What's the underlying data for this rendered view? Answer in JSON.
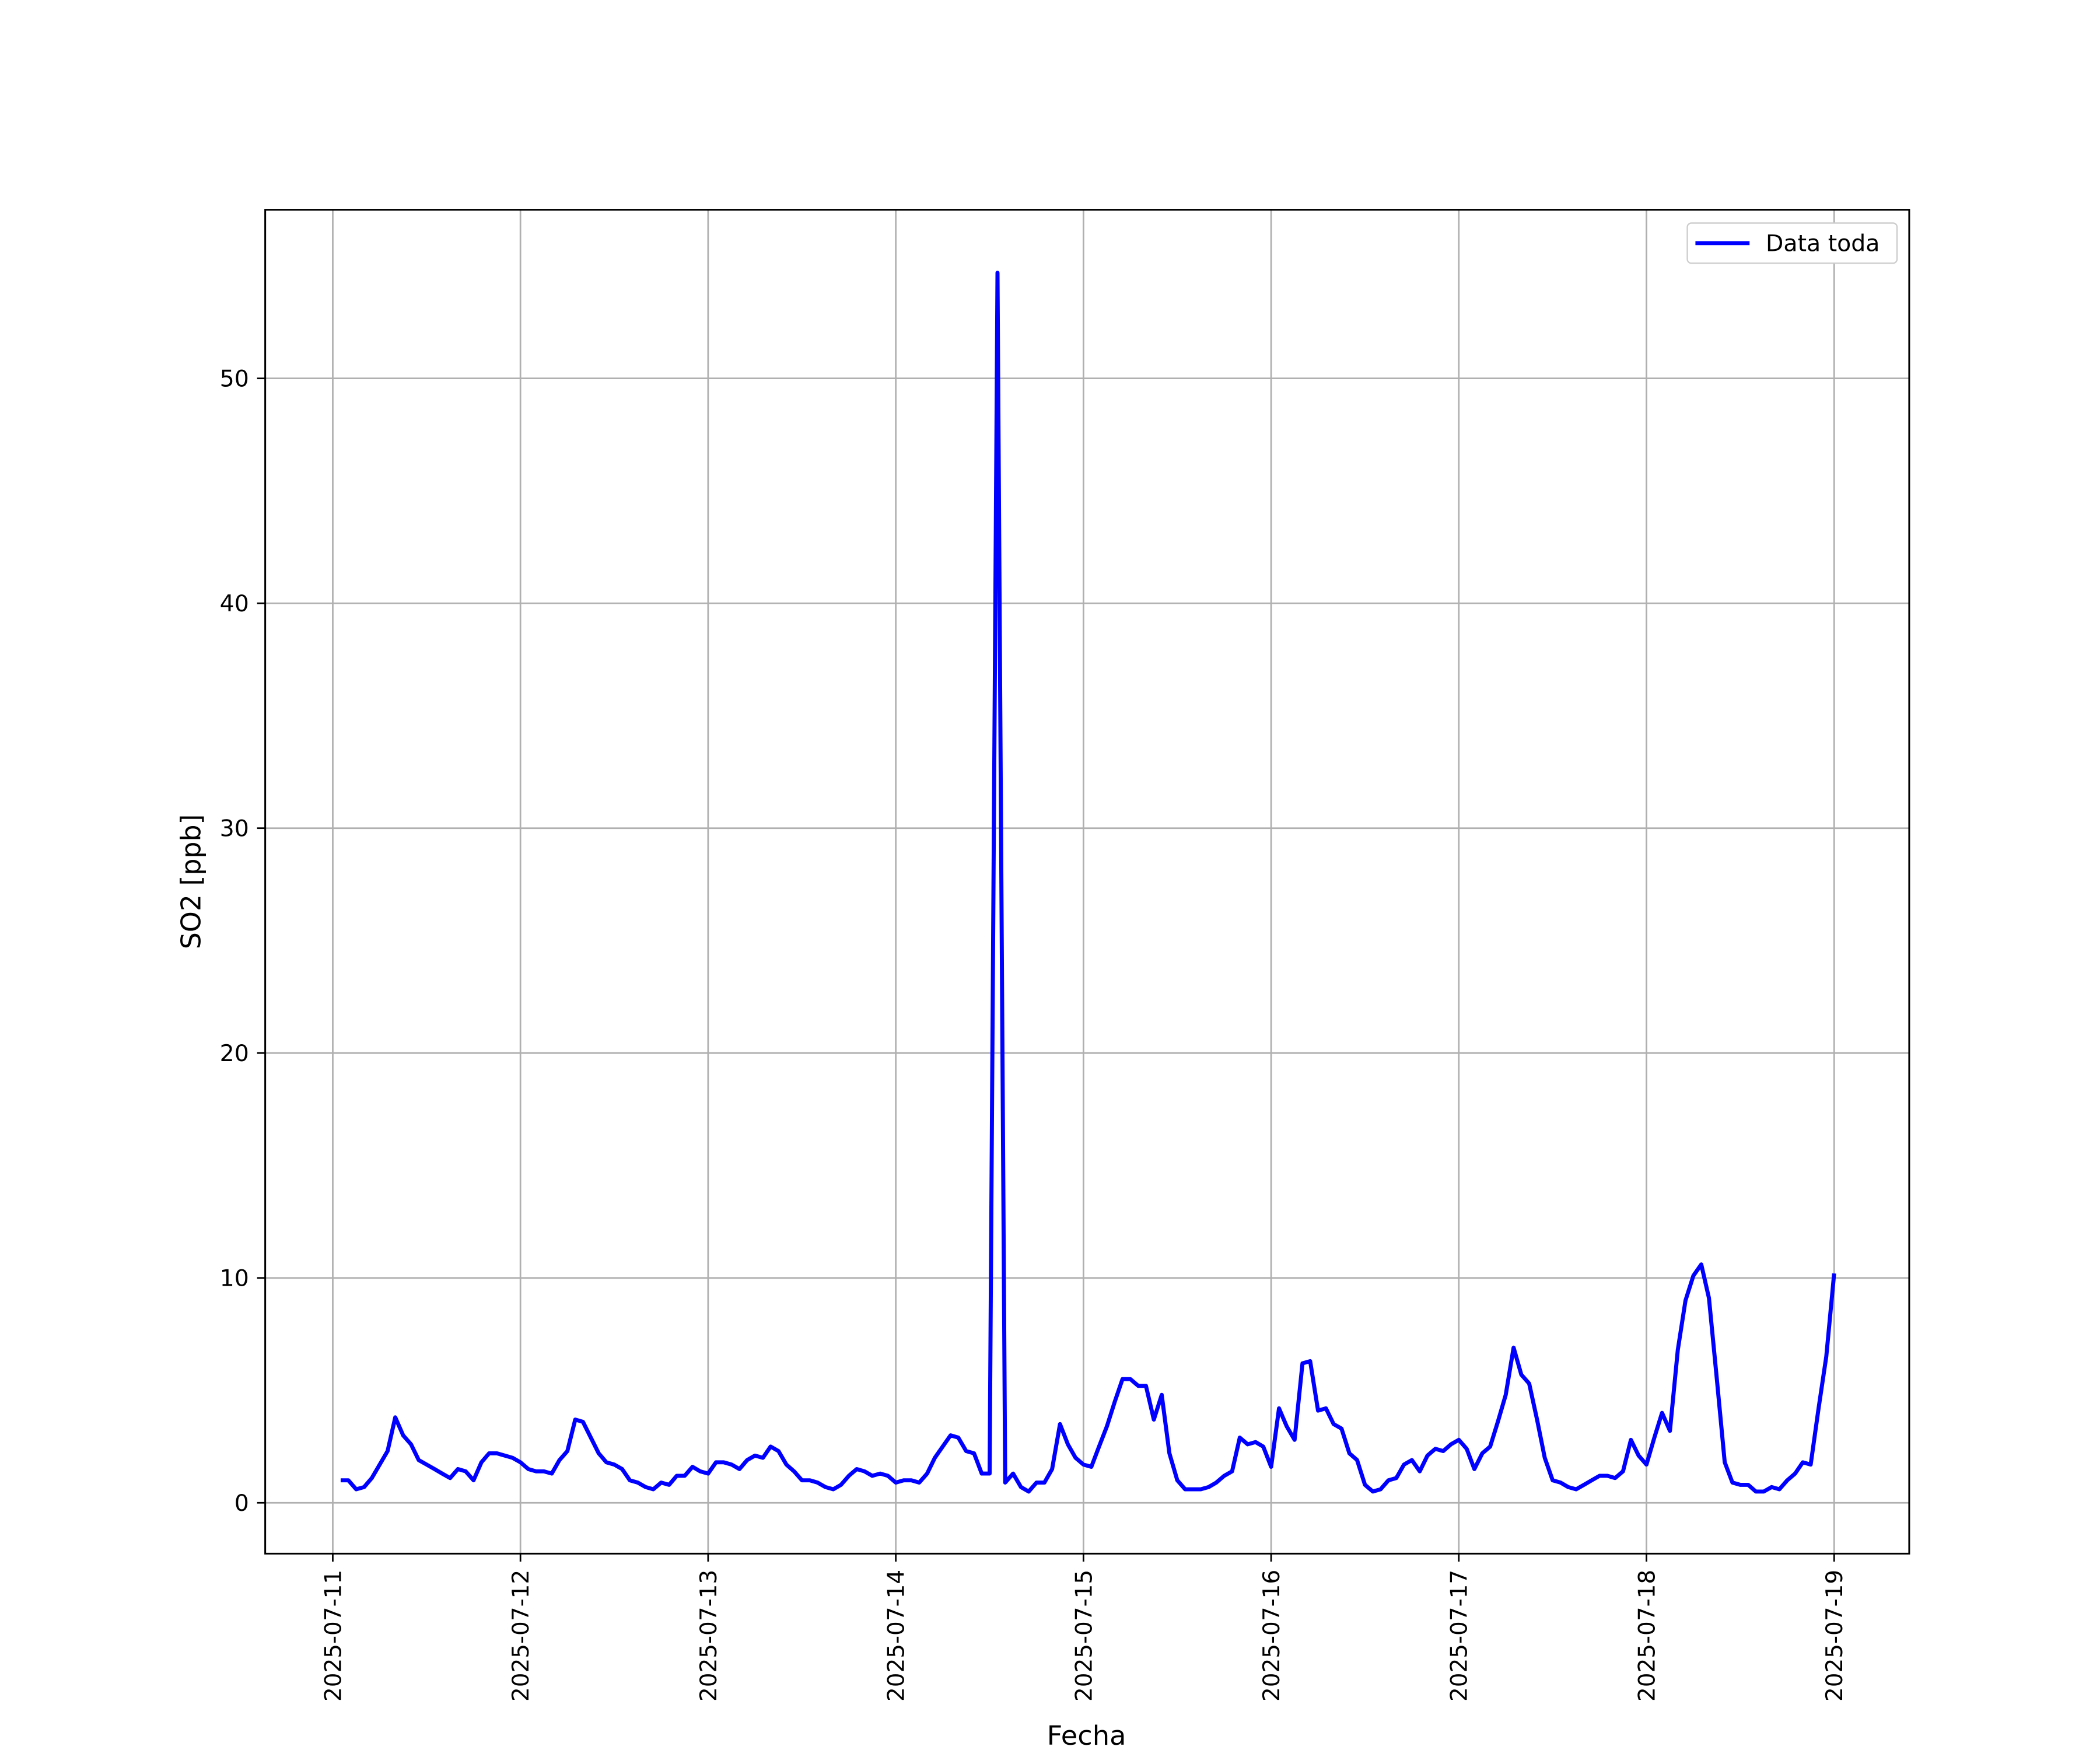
{
  "chart_data": {
    "type": "line",
    "xlabel": "Fecha",
    "ylabel": "SO2 [ppb]",
    "xlim": [
      -0.36,
      8.4
    ],
    "ylim": [
      -2.26,
      57.5
    ],
    "xticks": [
      {
        "value": 0,
        "label": "2025-07-11"
      },
      {
        "value": 1,
        "label": "2025-07-12"
      },
      {
        "value": 2,
        "label": "2025-07-13"
      },
      {
        "value": 3,
        "label": "2025-07-14"
      },
      {
        "value": 4,
        "label": "2025-07-15"
      },
      {
        "value": 5,
        "label": "2025-07-16"
      },
      {
        "value": 6,
        "label": "2025-07-17"
      },
      {
        "value": 7,
        "label": "2025-07-18"
      },
      {
        "value": 8,
        "label": "2025-07-19"
      }
    ],
    "yticks": [
      0,
      10,
      20,
      30,
      40,
      50
    ],
    "grid": true,
    "legend": "upper right",
    "x": [
      0.042,
      0.083,
      0.125,
      0.167,
      0.208,
      0.25,
      0.292,
      0.333,
      0.375,
      0.417,
      0.458,
      0.5,
      0.542,
      0.583,
      0.625,
      0.667,
      0.708,
      0.75,
      0.792,
      0.833,
      0.875,
      0.917,
      0.958,
      1,
      1.042,
      1.083,
      1.125,
      1.167,
      1.208,
      1.25,
      1.292,
      1.333,
      1.375,
      1.417,
      1.458,
      1.5,
      1.542,
      1.583,
      1.625,
      1.667,
      1.708,
      1.75,
      1.792,
      1.833,
      1.875,
      1.917,
      1.958,
      2,
      2.042,
      2.083,
      2.125,
      2.167,
      2.208,
      2.25,
      2.292,
      2.333,
      2.375,
      2.417,
      2.458,
      2.5,
      2.542,
      2.583,
      2.625,
      2.667,
      2.708,
      2.75,
      2.792,
      2.833,
      2.875,
      2.917,
      2.958,
      3,
      3.042,
      3.083,
      3.125,
      3.167,
      3.208,
      3.25,
      3.292,
      3.333,
      3.375,
      3.417,
      3.458,
      3.5,
      3.542,
      3.583,
      3.625,
      3.667,
      3.708,
      3.75,
      3.792,
      3.833,
      3.875,
      3.917,
      3.958,
      4,
      4.042,
      4.083,
      4.125,
      4.167,
      4.208,
      4.25,
      4.292,
      4.333,
      4.375,
      4.417,
      4.458,
      4.5,
      4.542,
      4.583,
      4.625,
      4.667,
      4.708,
      4.75,
      4.792,
      4.833,
      4.875,
      4.917,
      4.958,
      5,
      5.042,
      5.083,
      5.125,
      5.167,
      5.208,
      5.25,
      5.292,
      5.333,
      5.375,
      5.417,
      5.458,
      5.5,
      5.542,
      5.583,
      5.625,
      5.667,
      5.708,
      5.75,
      5.792,
      5.833,
      5.875,
      5.917,
      5.958,
      6,
      6.042,
      6.083,
      6.125,
      6.167,
      6.208,
      6.25,
      6.292,
      6.333,
      6.375,
      6.417,
      6.458,
      6.5,
      6.542,
      6.583,
      6.625,
      6.667,
      6.708,
      6.75,
      6.792,
      6.833,
      6.875,
      6.917,
      6.958,
      7,
      7.042,
      7.083,
      7.125,
      7.167,
      7.208,
      7.25,
      7.292,
      7.333,
      7.375,
      7.417,
      7.458,
      7.5,
      7.542,
      7.583,
      7.625,
      7.667,
      7.708,
      7.75,
      7.792,
      7.833,
      7.875,
      7.917,
      7.958,
      8
    ],
    "series": [
      {
        "name": "Data toda",
        "color": "#0000ff",
        "values": [
          1.0,
          1.0,
          0.6,
          0.7,
          1.1,
          1.7,
          2.3,
          3.8,
          3.0,
          2.6,
          1.9,
          1.7,
          1.5,
          1.3,
          1.1,
          1.5,
          1.4,
          1.0,
          1.8,
          2.2,
          2.2,
          2.1,
          2.0,
          1.8,
          1.5,
          1.4,
          1.4,
          1.3,
          1.9,
          2.3,
          3.7,
          3.6,
          2.9,
          2.2,
          1.8,
          1.7,
          1.5,
          1.0,
          0.9,
          0.7,
          0.6,
          0.9,
          0.8,
          1.2,
          1.2,
          1.6,
          1.4,
          1.3,
          1.8,
          1.8,
          1.7,
          1.5,
          1.9,
          2.1,
          2.0,
          2.5,
          2.3,
          1.7,
          1.4,
          1.0,
          1.0,
          0.9,
          0.7,
          0.6,
          0.8,
          1.2,
          1.5,
          1.4,
          1.2,
          1.3,
          1.2,
          0.9,
          1.0,
          1.0,
          0.9,
          1.3,
          2.0,
          2.5,
          3.0,
          2.9,
          2.3,
          2.2,
          1.3,
          1.3,
          54.7,
          0.9,
          1.3,
          0.7,
          0.5,
          0.9,
          0.9,
          1.5,
          3.5,
          2.6,
          2.0,
          1.7,
          1.6,
          2.5,
          3.4,
          4.5,
          5.5,
          5.5,
          5.2,
          5.2,
          3.7,
          4.8,
          2.2,
          1.0,
          0.6,
          0.6,
          0.6,
          0.7,
          0.9,
          1.2,
          1.4,
          2.9,
          2.6,
          2.7,
          2.5,
          1.6,
          4.2,
          3.4,
          2.8,
          6.2,
          6.3,
          4.1,
          4.2,
          3.5,
          3.3,
          2.2,
          1.9,
          0.8,
          0.5,
          0.6,
          1.0,
          1.1,
          1.7,
          1.9,
          1.4,
          2.1,
          2.4,
          2.3,
          2.6,
          2.8,
          2.4,
          1.5,
          2.2,
          2.5,
          3.6,
          4.8,
          6.9,
          5.7,
          5.3,
          3.7,
          2.0,
          1.0,
          0.9,
          0.7,
          0.6,
          0.8,
          1.0,
          1.2,
          1.2,
          1.1,
          1.4,
          2.8,
          2.1,
          1.7,
          2.9,
          4.0,
          3.2,
          6.8,
          9.0,
          10.1,
          10.6,
          9.1,
          5.5,
          1.8,
          0.9,
          0.8,
          0.8,
          0.5,
          0.5,
          0.7,
          0.6,
          1.0,
          1.3,
          1.8,
          1.7,
          4.2,
          6.5,
          10.2
        ]
      }
    ]
  }
}
